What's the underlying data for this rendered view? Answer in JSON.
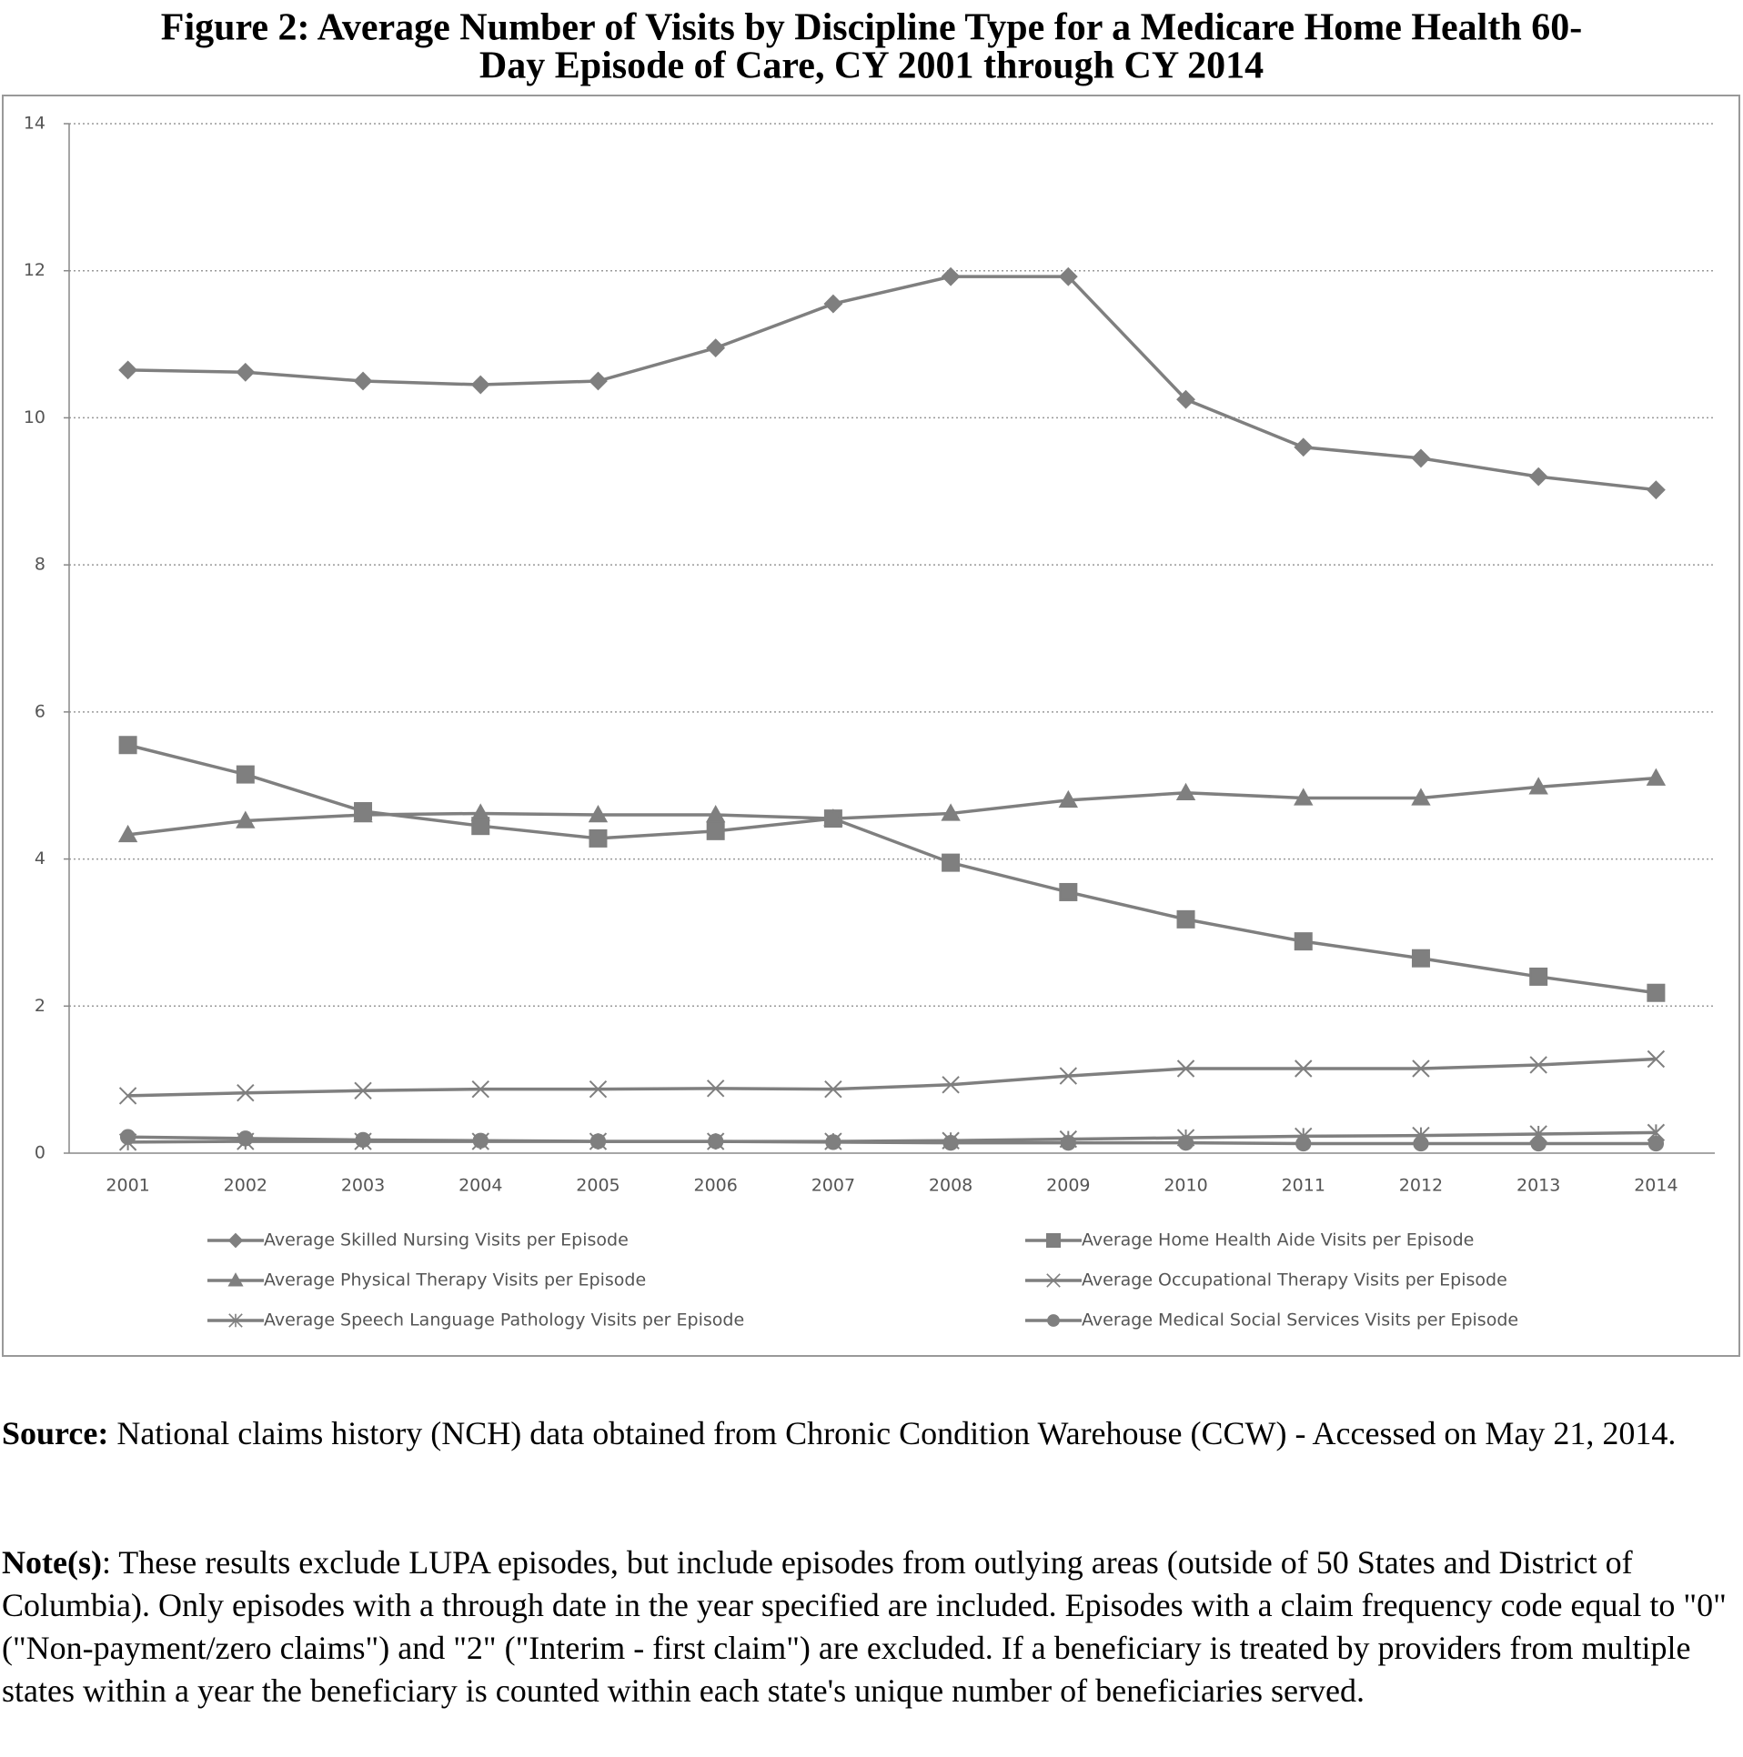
{
  "chart_data": {
    "type": "line",
    "title_lines": [
      "Figure 2: Average Number of Visits by Discipline Type for a Medicare Home Health 60-",
      "Day Episode of Care, CY 2001 through CY 2014"
    ],
    "categories": [
      "2001",
      "2002",
      "2003",
      "2004",
      "2005",
      "2006",
      "2007",
      "2008",
      "2009",
      "2010",
      "2011",
      "2012",
      "2013",
      "2014"
    ],
    "series": [
      {
        "name": "Average Skilled Nursing Visits per Episode",
        "color": "#7f7f7f",
        "marker": "diamond",
        "values": [
          10.65,
          10.62,
          10.5,
          10.45,
          10.5,
          10.95,
          11.55,
          11.92,
          11.92,
          10.25,
          9.6,
          9.45,
          9.2,
          9.02
        ]
      },
      {
        "name": "Average Home Health Aide Visits per Episode",
        "color": "#7f7f7f",
        "marker": "square",
        "values": [
          5.55,
          5.15,
          4.65,
          4.45,
          4.28,
          4.38,
          4.55,
          3.95,
          3.55,
          3.18,
          2.88,
          2.65,
          2.4,
          2.18
        ]
      },
      {
        "name": "Average Physical Therapy Visits per Episode",
        "color": "#7f7f7f",
        "marker": "triangle",
        "values": [
          4.33,
          4.52,
          4.6,
          4.62,
          4.6,
          4.6,
          4.55,
          4.62,
          4.8,
          4.9,
          4.83,
          4.83,
          4.98,
          5.1
        ]
      },
      {
        "name": "Average Occupational Therapy Visits per Episode",
        "color": "#7f7f7f",
        "marker": "x",
        "values": [
          0.78,
          0.82,
          0.85,
          0.87,
          0.87,
          0.88,
          0.87,
          0.93,
          1.05,
          1.15,
          1.15,
          1.15,
          1.2,
          1.28
        ]
      },
      {
        "name": "Average Speech Language Pathology Visits per Episode",
        "color": "#7f7f7f",
        "marker": "asterisk",
        "values": [
          0.15,
          0.16,
          0.16,
          0.16,
          0.16,
          0.16,
          0.16,
          0.17,
          0.19,
          0.21,
          0.23,
          0.24,
          0.26,
          0.28
        ]
      },
      {
        "name": "Average Medical Social Services Visits per Episode",
        "color": "#7f7f7f",
        "marker": "circle",
        "values": [
          0.22,
          0.2,
          0.18,
          0.17,
          0.16,
          0.16,
          0.15,
          0.14,
          0.14,
          0.14,
          0.13,
          0.13,
          0.13,
          0.13
        ]
      }
    ],
    "ylim": [
      0,
      14
    ],
    "yticks": [
      0,
      2,
      4,
      6,
      8,
      10,
      12,
      14
    ],
    "grid": true,
    "legend": "bottom"
  },
  "source_label": "Source:",
  "source": "National claims history (NCH) data obtained from Chronic Condition Warehouse (CCW) - Accessed on May 21, 2014.",
  "note_label": "Note(s)",
  "note": ": These results exclude LUPA episodes, but include episodes from outlying areas (outside of 50 States and District of Columbia). Only episodes with a through date in the year specified are included. Episodes with a claim frequency code equal to \"0\" (\"Non-payment/zero claims\") and \"2\" (\"Interim - first claim\") are excluded. If a beneficiary is treated by providers from multiple states within a year the beneficiary is counted within each state's unique number of beneficiaries served."
}
